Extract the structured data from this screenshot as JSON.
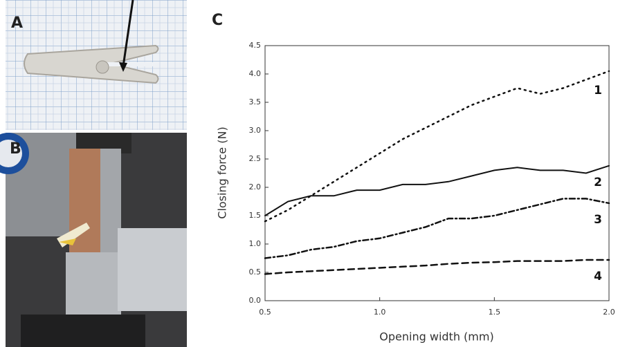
{
  "panels": [
    "A",
    "B",
    "C"
  ],
  "chart_data": {
    "type": "line",
    "x_label": "Opening width (mm)",
    "y_label": "Closing force (N)",
    "x": [
      0.5,
      0.6,
      0.7,
      0.8,
      0.9,
      1.0,
      1.1,
      1.2,
      1.3,
      1.4,
      1.5,
      1.6,
      1.7,
      1.8,
      1.9,
      2.0
    ],
    "xlim": [
      0.5,
      2.0
    ],
    "xticks": [
      0.5,
      {
        "value": 1,
        "label": "1.0"
      },
      1.5,
      {
        "value": 2,
        "label": "2.0"
      }
    ],
    "ylim": [
      0,
      4.5
    ],
    "yticks": [
      {
        "value": 0,
        "label": "0.0"
      },
      0.5,
      {
        "value": 1,
        "label": "1.0"
      },
      1.5,
      {
        "value": 2,
        "label": "2.0"
      },
      2.5,
      {
        "value": 3,
        "label": "3.0"
      },
      3.5,
      {
        "value": 4,
        "label": "4.0"
      },
      4.5
    ],
    "series": [
      {
        "name": "1",
        "color": "#111111",
        "style": "dotted",
        "values": [
          1.4,
          1.6,
          1.85,
          2.1,
          2.35,
          2.6,
          2.85,
          3.05,
          3.25,
          3.45,
          3.6,
          3.75,
          3.65,
          3.75,
          3.9,
          4.05
        ]
      },
      {
        "name": "2",
        "color": "#111111",
        "style": "solid",
        "values": [
          1.5,
          1.75,
          1.85,
          1.85,
          1.95,
          1.95,
          2.05,
          2.05,
          2.1,
          2.2,
          2.3,
          2.35,
          2.3,
          2.3,
          2.25,
          2.38
        ]
      },
      {
        "name": "3",
        "color": "#111111",
        "style": "dashdot",
        "values": [
          0.75,
          0.8,
          0.9,
          0.95,
          1.05,
          1.1,
          1.2,
          1.3,
          1.45,
          1.45,
          1.5,
          1.6,
          1.7,
          1.8,
          1.8,
          1.72
        ]
      },
      {
        "name": "4",
        "color": "#111111",
        "style": "dashed",
        "values": [
          0.47,
          0.5,
          0.52,
          0.54,
          0.56,
          0.58,
          0.6,
          0.62,
          0.65,
          0.67,
          0.68,
          0.7,
          0.7,
          0.7,
          0.72,
          0.72
        ]
      }
    ]
  }
}
